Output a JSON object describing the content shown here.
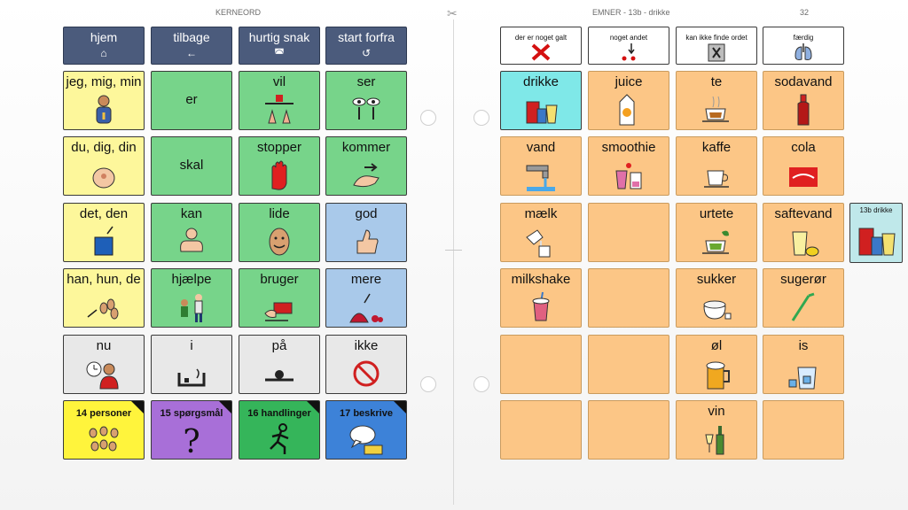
{
  "header": {
    "left_title": "KERNEORD",
    "right_title": "EMNER - 13b - drikke",
    "page_number": "32"
  },
  "nav": [
    {
      "label": "hjem",
      "icon": "home-icon",
      "glyph": "⌂"
    },
    {
      "label": "tilbage",
      "icon": "back-arrow-icon",
      "glyph": "←"
    },
    {
      "label": "hurtig snak",
      "icon": "chat-icon",
      "glyph": "◚"
    },
    {
      "label": "start forfra",
      "icon": "restart-icon",
      "glyph": "↺"
    }
  ],
  "core": [
    {
      "label": "jeg, mig, min",
      "color": "y"
    },
    {
      "label": "er",
      "color": "g"
    },
    {
      "label": "vil",
      "color": "g"
    },
    {
      "label": "ser",
      "color": "g"
    },
    {
      "label": "du, dig, din",
      "color": "y"
    },
    {
      "label": "skal",
      "color": "g"
    },
    {
      "label": "stopper",
      "color": "g"
    },
    {
      "label": "kommer",
      "color": "g"
    },
    {
      "label": "det, den",
      "color": "y"
    },
    {
      "label": "kan",
      "color": "g"
    },
    {
      "label": "lide",
      "color": "g"
    },
    {
      "label": "god",
      "color": "b"
    },
    {
      "label": "han, hun, de",
      "color": "y"
    },
    {
      "label": "hjælpe",
      "color": "g"
    },
    {
      "label": "bruger",
      "color": "g"
    },
    {
      "label": "mere",
      "color": "b"
    },
    {
      "label": "nu",
      "color": "w"
    },
    {
      "label": "i",
      "color": "w"
    },
    {
      "label": "på",
      "color": "w"
    },
    {
      "label": "ikke",
      "color": "w"
    }
  ],
  "categories": [
    {
      "label": "14 personer",
      "color": "c-yellow"
    },
    {
      "label": "15 spørgsmål",
      "color": "c-purple"
    },
    {
      "label": "16 handlinger",
      "color": "c-green"
    },
    {
      "label": "17 beskrive",
      "color": "c-blue"
    }
  ],
  "messages": [
    {
      "label": "der er noget galt",
      "icon": "red-x-icon"
    },
    {
      "label": "noget andet",
      "icon": "arrow-dots-icon"
    },
    {
      "label": "kan ikke finde ordet",
      "icon": "book-x-icon"
    },
    {
      "label": "færdig",
      "icon": "lungs-icon"
    }
  ],
  "drinks": [
    {
      "label": "drikke",
      "color": "t"
    },
    {
      "label": "juice",
      "color": "o"
    },
    {
      "label": "te",
      "color": "o"
    },
    {
      "label": "sodavand",
      "color": "o"
    },
    {
      "label": "vand",
      "color": "o"
    },
    {
      "label": "smoothie",
      "color": "o"
    },
    {
      "label": "kaffe",
      "color": "o"
    },
    {
      "label": "cola",
      "color": "o"
    },
    {
      "label": "mælk",
      "color": "o"
    },
    {
      "label": "",
      "color": "o"
    },
    {
      "label": "urtete",
      "color": "o"
    },
    {
      "label": "saftevand",
      "color": "o"
    },
    {
      "label": "milkshake",
      "color": "o"
    },
    {
      "label": "",
      "color": "o"
    },
    {
      "label": "sukker",
      "color": "o"
    },
    {
      "label": "sugerør",
      "color": "o"
    },
    {
      "label": "",
      "color": "o"
    },
    {
      "label": "",
      "color": "o"
    },
    {
      "label": "øl",
      "color": "o"
    },
    {
      "label": "is",
      "color": "o"
    },
    {
      "label": "",
      "color": "o"
    },
    {
      "label": "",
      "color": "o"
    },
    {
      "label": "vin",
      "color": "o"
    },
    {
      "label": "",
      "color": "o"
    }
  ],
  "side_tab": {
    "label": "13b drikke"
  }
}
